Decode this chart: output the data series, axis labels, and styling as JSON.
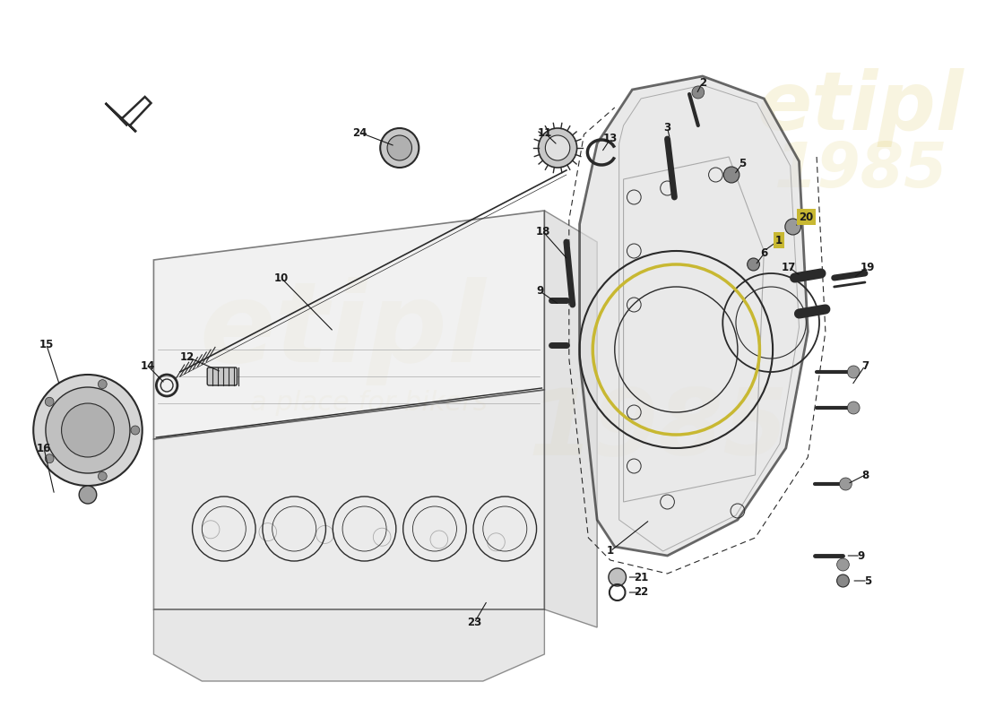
{
  "bg_color": "#ffffff",
  "fig_width": 11.0,
  "fig_height": 8.0,
  "line_color": "#2a2a2a",
  "light_gray": "#d8d8d8",
  "mid_gray": "#b0b0b0",
  "dark_gray": "#888888",
  "accent_yellow": "#c8b832",
  "watermark_color": "#c8a800",
  "label_fontsize": 8.5,
  "label_color": "#1a1a1a"
}
